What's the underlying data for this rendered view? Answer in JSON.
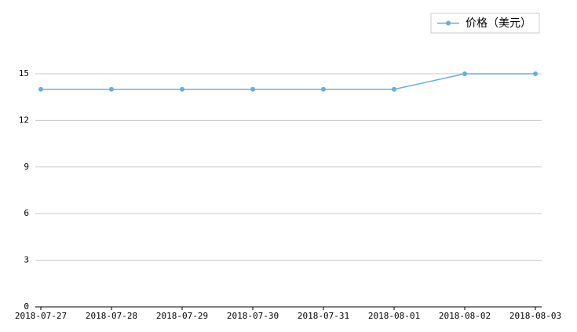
{
  "chart_data": {
    "type": "line",
    "categories": [
      "2018-07-27",
      "2018-07-28",
      "2018-07-29",
      "2018-07-30",
      "2018-07-31",
      "2018-08-01",
      "2018-08-02",
      "2018-08-03"
    ],
    "series": [
      {
        "name": "价格（美元）",
        "color": "#6aaed6",
        "values": [
          14,
          14,
          14,
          14,
          14,
          14,
          15,
          15
        ]
      }
    ],
    "ylim": [
      0,
      15
    ],
    "yticks": [
      0,
      3,
      6,
      9,
      12,
      15
    ],
    "grid": true,
    "legend": "top-right"
  }
}
